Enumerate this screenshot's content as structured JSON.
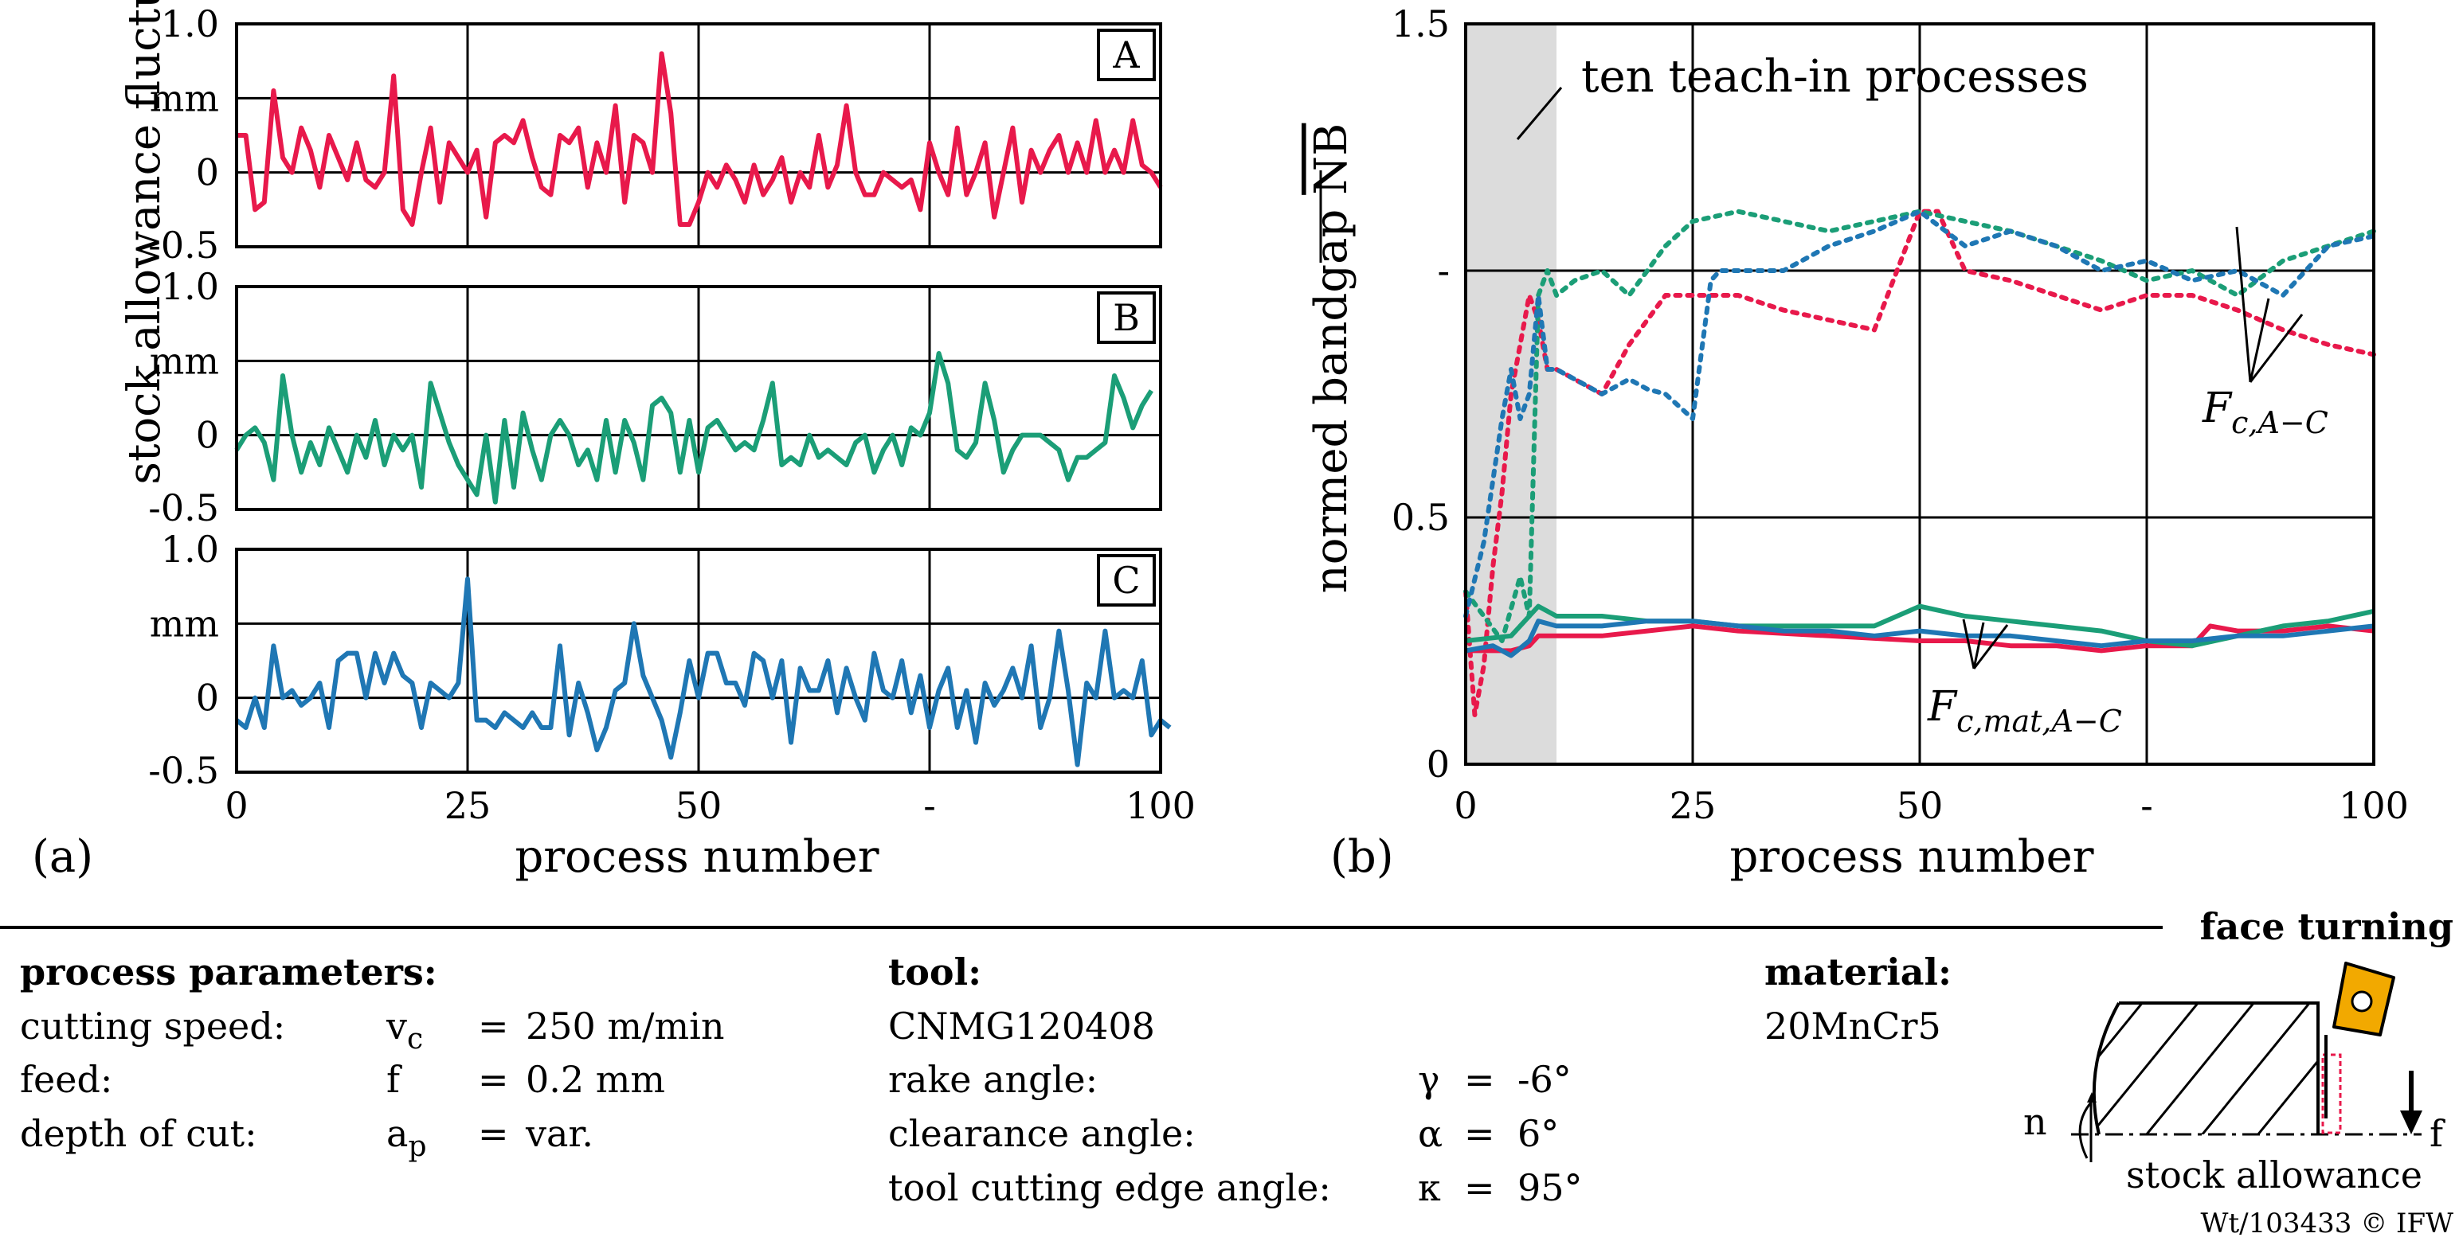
{
  "chart_data": [
    {
      "id": "a",
      "type": "line",
      "panel_label": "(a)",
      "xlabel": "process number",
      "ylabel": "stock allowance fluctuation",
      "x_ticks": [
        "0",
        "25",
        "50",
        "-",
        "100"
      ],
      "xlim": [
        0,
        100
      ],
      "subplots": [
        {
          "label": "A",
          "color": "#e8194b",
          "ylim": [
            -0.5,
            1.0
          ],
          "y_ticks": [
            "1.0",
            "mm",
            "0",
            "-0.5"
          ],
          "values": [
            0.25,
            0.25,
            -0.25,
            -0.2,
            0.55,
            0.1,
            0.0,
            0.3,
            0.15,
            -0.1,
            0.25,
            0.1,
            -0.05,
            0.2,
            -0.05,
            -0.1,
            0.0,
            0.65,
            -0.25,
            -0.35,
            0.0,
            0.3,
            -0.2,
            0.2,
            0.1,
            0.0,
            0.15,
            -0.3,
            0.2,
            0.25,
            0.2,
            0.35,
            0.1,
            -0.1,
            -0.15,
            0.25,
            0.2,
            0.3,
            -0.1,
            0.2,
            0.0,
            0.45,
            -0.2,
            0.25,
            0.2,
            0.0,
            0.8,
            0.4,
            -0.35,
            -0.35,
            -0.2,
            0.0,
            -0.1,
            0.05,
            -0.05,
            -0.2,
            0.05,
            -0.15,
            -0.05,
            0.1,
            -0.2,
            0.0,
            -0.1,
            0.25,
            -0.1,
            0.05,
            0.45,
            0.0,
            -0.15,
            -0.15,
            0.0,
            -0.05,
            -0.1,
            -0.05,
            -0.25,
            0.2,
            0.0,
            -0.15,
            0.3,
            -0.15,
            0.0,
            0.2,
            -0.3,
            0.0,
            0.3,
            -0.2,
            0.15,
            0.0,
            0.15,
            0.25,
            0.0,
            0.2,
            0.0,
            0.35,
            0.0,
            0.15,
            0.0,
            0.35,
            0.05,
            0.0,
            -0.1
          ]
        },
        {
          "label": "B",
          "color": "#1b9e77",
          "ylim": [
            -0.5,
            1.0
          ],
          "y_ticks": [
            "1.0",
            "mm",
            "0",
            "-0.5"
          ],
          "values": [
            -0.1,
            0.0,
            0.05,
            -0.05,
            -0.3,
            0.4,
            0.0,
            -0.25,
            -0.05,
            -0.2,
            0.05,
            -0.1,
            -0.25,
            0.0,
            -0.15,
            0.1,
            -0.2,
            0.0,
            -0.1,
            0.0,
            -0.35,
            0.35,
            0.15,
            -0.05,
            -0.2,
            -0.3,
            -0.4,
            0.0,
            -0.45,
            0.1,
            -0.35,
            0.15,
            -0.1,
            -0.3,
            0.0,
            0.1,
            0.0,
            -0.2,
            -0.1,
            -0.3,
            0.1,
            -0.25,
            0.1,
            -0.05,
            -0.3,
            0.2,
            0.25,
            0.15,
            -0.25,
            0.1,
            -0.25,
            0.05,
            0.1,
            0.0,
            -0.1,
            -0.05,
            -0.1,
            0.1,
            0.35,
            -0.2,
            -0.15,
            -0.2,
            0.0,
            -0.15,
            -0.1,
            -0.15,
            -0.2,
            -0.05,
            0.0,
            -0.25,
            -0.1,
            0.0,
            -0.2,
            0.05,
            0.0,
            0.15,
            0.55,
            0.35,
            -0.1,
            -0.15,
            -0.05,
            0.35,
            0.1,
            -0.25,
            -0.1,
            0.0,
            0.0,
            0.0,
            -0.05,
            -0.1,
            -0.3,
            -0.15,
            -0.15,
            -0.1,
            -0.05,
            0.4,
            0.25,
            0.05,
            0.2,
            0.3
          ]
        },
        {
          "label": "C",
          "color": "#1f77b4",
          "ylim": [
            -0.5,
            1.0
          ],
          "y_ticks": [
            "1.0",
            "mm",
            "0",
            "-0.5"
          ],
          "values": [
            -0.15,
            -0.2,
            0.0,
            -0.2,
            0.35,
            0.0,
            0.05,
            -0.05,
            0.0,
            0.1,
            -0.2,
            0.25,
            0.3,
            0.3,
            0.0,
            0.3,
            0.1,
            0.3,
            0.15,
            0.1,
            -0.2,
            0.1,
            0.05,
            0.0,
            0.1,
            0.8,
            -0.15,
            -0.15,
            -0.2,
            -0.1,
            -0.15,
            -0.2,
            -0.1,
            -0.2,
            -0.2,
            0.35,
            -0.25,
            0.1,
            -0.1,
            -0.35,
            -0.2,
            0.05,
            0.1,
            0.5,
            0.15,
            0.0,
            -0.15,
            -0.4,
            -0.1,
            0.25,
            0.0,
            0.3,
            0.3,
            0.1,
            0.1,
            -0.05,
            0.3,
            0.25,
            0.0,
            0.25,
            -0.3,
            0.2,
            0.05,
            0.05,
            0.25,
            -0.1,
            0.2,
            0.0,
            -0.15,
            0.3,
            0.05,
            0.0,
            0.25,
            -0.1,
            0.15,
            -0.2,
            0.05,
            0.2,
            -0.2,
            0.05,
            -0.3,
            0.1,
            -0.05,
            0.05,
            0.2,
            0.0,
            0.35,
            -0.2,
            0.0,
            0.45,
            0.05,
            -0.45,
            0.1,
            0.0,
            0.45,
            0.0,
            0.05,
            0.0,
            0.25,
            -0.25,
            -0.15,
            -0.2
          ]
        }
      ]
    },
    {
      "id": "b",
      "type": "line",
      "panel_label": "(b)",
      "xlabel": "process number",
      "ylabel": "normed bandgap NB",
      "ylabel_overline": "NB",
      "xlim": [
        0,
        100
      ],
      "ylim": [
        0,
        1.5
      ],
      "x_ticks": [
        "0",
        "25",
        "50",
        "-",
        "100"
      ],
      "y_ticks": [
        {
          "value": 1.5,
          "label": "1.5"
        },
        {
          "value": 1.0,
          "label": "-"
        },
        {
          "value": 0.5,
          "label": "0.5"
        },
        {
          "value": 0.0,
          "label": "0"
        }
      ],
      "shaded_region": {
        "x": [
          0,
          10
        ],
        "label": "ten teach-in processes"
      },
      "annotations": [
        {
          "text": "F",
          "sub": "c,A−C",
          "points_to": "dotted series"
        },
        {
          "text": "F",
          "sub": "c,mat,A−C",
          "points_to": "solid series"
        }
      ],
      "series": [
        {
          "name": "Fc A",
          "style": "dotted",
          "color": "#e8194b",
          "x": [
            0,
            1,
            2,
            3,
            4,
            5,
            6,
            7,
            8,
            9,
            10,
            15,
            18,
            20,
            22,
            25,
            30,
            35,
            40,
            45,
            50,
            52,
            55,
            60,
            65,
            70,
            75,
            80,
            85,
            90,
            95,
            100
          ],
          "y": [
            0.35,
            0.1,
            0.2,
            0.4,
            0.55,
            0.75,
            0.85,
            0.95,
            0.9,
            0.8,
            0.8,
            0.75,
            0.85,
            0.9,
            0.95,
            0.95,
            0.95,
            0.92,
            0.9,
            0.88,
            1.12,
            1.12,
            1.0,
            0.98,
            0.95,
            0.92,
            0.95,
            0.95,
            0.92,
            0.88,
            0.85,
            0.83
          ]
        },
        {
          "name": "Fc B",
          "style": "dotted",
          "color": "#1b9e77",
          "x": [
            0,
            2,
            4,
            6,
            7,
            8,
            9,
            10,
            12,
            15,
            18,
            20,
            22,
            25,
            30,
            35,
            40,
            45,
            50,
            55,
            60,
            65,
            70,
            75,
            80,
            85,
            90,
            95,
            100
          ],
          "y": [
            0.35,
            0.3,
            0.25,
            0.38,
            0.3,
            0.95,
            1.0,
            0.95,
            0.98,
            1.0,
            0.95,
            1.0,
            1.05,
            1.1,
            1.12,
            1.1,
            1.08,
            1.1,
            1.12,
            1.1,
            1.08,
            1.05,
            1.02,
            0.98,
            1.0,
            0.95,
            1.02,
            1.05,
            1.08
          ]
        },
        {
          "name": "Fc C",
          "style": "dotted",
          "color": "#1f77b4",
          "x": [
            0,
            2,
            4,
            5,
            6,
            7,
            8,
            9,
            10,
            12,
            15,
            18,
            20,
            22,
            25,
            27,
            28,
            35,
            40,
            45,
            50,
            55,
            60,
            65,
            70,
            75,
            80,
            85,
            90,
            95,
            100
          ],
          "y": [
            0.3,
            0.45,
            0.7,
            0.8,
            0.7,
            0.75,
            0.95,
            0.8,
            0.8,
            0.78,
            0.75,
            0.78,
            0.76,
            0.75,
            0.7,
            0.98,
            1.0,
            1.0,
            1.05,
            1.08,
            1.12,
            1.05,
            1.08,
            1.05,
            1.0,
            1.02,
            0.98,
            1.0,
            0.95,
            1.05,
            1.07
          ]
        },
        {
          "name": "Fc,mat A",
          "style": "solid",
          "color": "#e8194b",
          "x": [
            0,
            5,
            7,
            8,
            10,
            15,
            20,
            25,
            30,
            40,
            50,
            55,
            60,
            65,
            70,
            75,
            80,
            82,
            85,
            90,
            95,
            100
          ],
          "y": [
            0.23,
            0.23,
            0.24,
            0.26,
            0.26,
            0.26,
            0.27,
            0.28,
            0.27,
            0.26,
            0.25,
            0.25,
            0.24,
            0.24,
            0.23,
            0.24,
            0.24,
            0.28,
            0.27,
            0.27,
            0.28,
            0.27
          ]
        },
        {
          "name": "Fc,mat B",
          "style": "solid",
          "color": "#1b9e77",
          "x": [
            0,
            5,
            7,
            8,
            10,
            15,
            20,
            25,
            30,
            35,
            40,
            45,
            50,
            55,
            60,
            65,
            70,
            75,
            80,
            85,
            90,
            95,
            100
          ],
          "y": [
            0.25,
            0.26,
            0.3,
            0.32,
            0.3,
            0.3,
            0.29,
            0.29,
            0.28,
            0.28,
            0.28,
            0.28,
            0.32,
            0.3,
            0.29,
            0.28,
            0.27,
            0.25,
            0.24,
            0.26,
            0.28,
            0.29,
            0.31
          ]
        },
        {
          "name": "Fc,mat C",
          "style": "solid",
          "color": "#1f77b4",
          "x": [
            0,
            3,
            5,
            7,
            8,
            10,
            15,
            20,
            25,
            30,
            35,
            40,
            45,
            50,
            55,
            60,
            65,
            70,
            75,
            80,
            85,
            90,
            95,
            100
          ],
          "y": [
            0.23,
            0.24,
            0.22,
            0.25,
            0.29,
            0.28,
            0.28,
            0.29,
            0.29,
            0.28,
            0.27,
            0.27,
            0.26,
            0.27,
            0.26,
            0.26,
            0.25,
            0.24,
            0.25,
            0.25,
            0.26,
            0.26,
            0.27,
            0.28
          ]
        }
      ]
    }
  ],
  "footer": {
    "params_heading": "process parameters:",
    "params": [
      {
        "label": "cutting speed:",
        "symbol": "v",
        "sub": "c",
        "eq": "=",
        "value": "250 m/min"
      },
      {
        "label": "feed:",
        "symbol": "f",
        "sub": "",
        "eq": "=",
        "value": "0.2 mm"
      },
      {
        "label": "depth of cut:",
        "symbol": "a",
        "sub": "p",
        "eq": "=",
        "value": "var."
      }
    ],
    "tool_heading": "tool:",
    "tool_name": "CNMG120408",
    "tool_params": [
      {
        "label": "rake angle:",
        "symbol": "γ",
        "eq": "=",
        "value": "-6°"
      },
      {
        "label": "clearance angle:",
        "symbol": "α",
        "eq": "=",
        "value": "6°"
      },
      {
        "label": "tool cutting edge angle:",
        "symbol": "κ",
        "eq": "=",
        "value": "95°"
      }
    ],
    "material_heading": "material:",
    "material_name": "20MnCr5",
    "schematic_title": "face turning",
    "schematic_n": "n",
    "schematic_f": "f",
    "schematic_caption": "stock allowance",
    "copyright": "Wt/103433 © IFW"
  }
}
